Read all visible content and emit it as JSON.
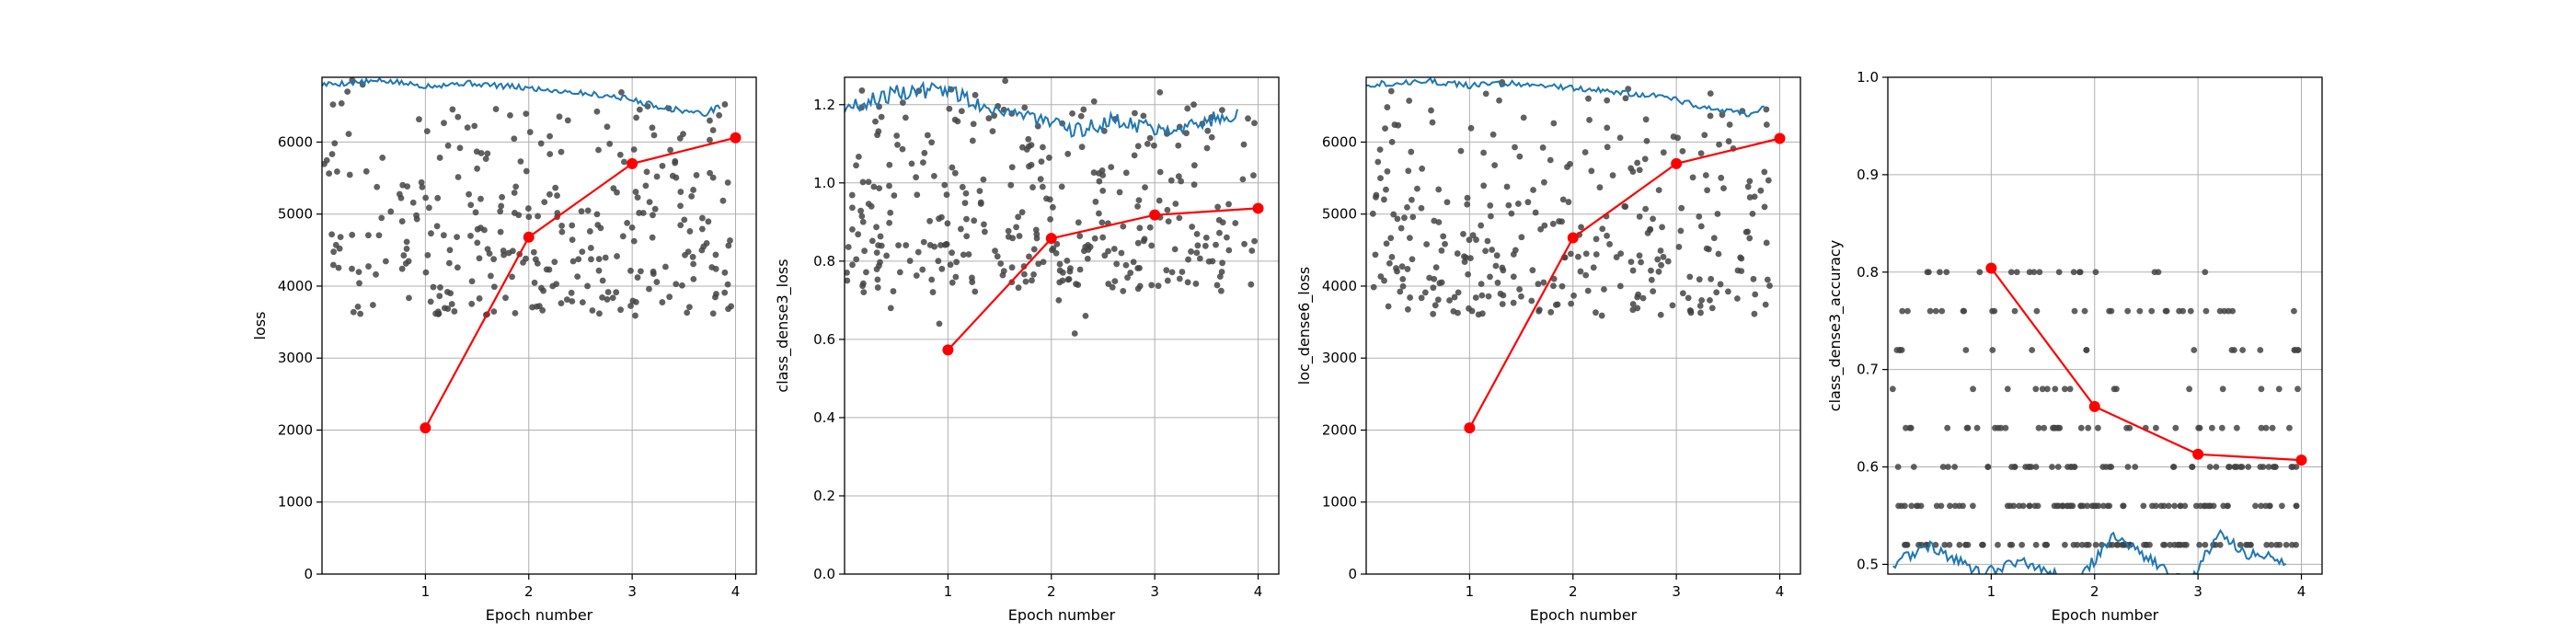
{
  "chart_data": [
    {
      "type": "line",
      "ylabel": "loss",
      "xlabel": "Epoch number",
      "xlim": [
        0,
        4.2
      ],
      "ylim": [
        0,
        6900
      ],
      "xticks": [
        1,
        2,
        3,
        4
      ],
      "yticks": [
        0,
        1000,
        2000,
        3000,
        4000,
        5000,
        6000
      ],
      "grid": true,
      "series": [
        {
          "kind": "epoch-mean",
          "color": "#ff0000",
          "x": [
            1,
            2,
            3,
            4
          ],
          "y": [
            2030,
            4680,
            5700,
            6060
          ]
        },
        {
          "kind": "batch-scatter",
          "color": "#444444",
          "count": 300,
          "seed": 11,
          "lo": 3600,
          "hi": 6900,
          "sparse_lo": [
            3590,
            3600,
            3750,
            3900,
            4000,
            4200
          ]
        },
        {
          "kind": "moving-average",
          "color": "#1f77b4",
          "profile": [
            [
              0.0,
              6800
            ],
            [
              0.6,
              6850
            ],
            [
              1.0,
              6780
            ],
            [
              1.4,
              6820
            ],
            [
              1.9,
              6760
            ],
            [
              2.4,
              6700
            ],
            [
              2.9,
              6620
            ],
            [
              3.3,
              6480
            ],
            [
              3.7,
              6390
            ],
            [
              3.85,
              6500
            ]
          ],
          "jitter": 40
        }
      ]
    },
    {
      "type": "line",
      "ylabel": "class_dense3_loss",
      "xlabel": "Epoch number",
      "xlim": [
        0,
        4.2
      ],
      "ylim": [
        0,
        1.27
      ],
      "xticks": [
        1,
        2,
        3,
        4
      ],
      "yticks": [
        0.0,
        0.2,
        0.4,
        0.6,
        0.8,
        1.0,
        1.2
      ],
      "grid": true,
      "series": [
        {
          "kind": "epoch-mean",
          "color": "#ff0000",
          "x": [
            1,
            2,
            3,
            4
          ],
          "y": [
            0.573,
            0.858,
            0.918,
            0.935
          ]
        },
        {
          "kind": "batch-scatter",
          "color": "#444444",
          "count": 330,
          "seed": 23,
          "lo": 0.72,
          "hi": 1.27,
          "sparse_lo": [
            0.615,
            0.64,
            0.66,
            0.68,
            0.7
          ]
        },
        {
          "kind": "moving-average",
          "color": "#1f77b4",
          "profile": [
            [
              0.0,
              1.19
            ],
            [
              0.5,
              1.23
            ],
            [
              1.0,
              1.24
            ],
            [
              1.3,
              1.2
            ],
            [
              1.8,
              1.17
            ],
            [
              2.2,
              1.13
            ],
            [
              2.6,
              1.16
            ],
            [
              3.0,
              1.14
            ],
            [
              3.4,
              1.15
            ],
            [
              3.8,
              1.18
            ]
          ],
          "jitter": 0.02
        }
      ]
    },
    {
      "type": "line",
      "ylabel": "loc_dense6_loss",
      "xlabel": "Epoch number",
      "xlim": [
        0,
        4.2
      ],
      "ylim": [
        0,
        6900
      ],
      "xticks": [
        1,
        2,
        3,
        4
      ],
      "yticks": [
        0,
        1000,
        2000,
        3000,
        4000,
        5000,
        6000
      ],
      "grid": true,
      "series": [
        {
          "kind": "epoch-mean",
          "color": "#ff0000",
          "x": [
            1,
            2,
            3,
            4
          ],
          "y": [
            2030,
            4670,
            5700,
            6050
          ]
        },
        {
          "kind": "batch-scatter",
          "color": "#444444",
          "count": 300,
          "seed": 37,
          "lo": 3600,
          "hi": 6900,
          "sparse_lo": [
            3590,
            3600,
            3750,
            3900,
            4000,
            4200
          ]
        },
        {
          "kind": "moving-average",
          "color": "#1f77b4",
          "profile": [
            [
              0.0,
              6800
            ],
            [
              0.6,
              6850
            ],
            [
              1.0,
              6780
            ],
            [
              1.4,
              6820
            ],
            [
              1.9,
              6760
            ],
            [
              2.4,
              6700
            ],
            [
              2.9,
              6620
            ],
            [
              3.3,
              6480
            ],
            [
              3.7,
              6390
            ],
            [
              3.85,
              6500
            ]
          ],
          "jitter": 40
        }
      ]
    },
    {
      "type": "line",
      "ylabel": "class_dense3_accuracy",
      "xlabel": "Epoch number",
      "xlim": [
        0,
        4.2
      ],
      "ylim": [
        0.49,
        1.0
      ],
      "xticks": [
        1,
        2,
        3,
        4
      ],
      "yticks": [
        0.5,
        0.6,
        0.7,
        0.8,
        0.9,
        1.0
      ],
      "grid": true,
      "series": [
        {
          "kind": "epoch-mean",
          "color": "#ff0000",
          "x": [
            1,
            2,
            3,
            4
          ],
          "y": [
            0.804,
            0.662,
            0.613,
            0.607
          ]
        },
        {
          "kind": "batch-scatter",
          "color": "#444444",
          "count": 320,
          "seed": 51,
          "levels": [
            0.52,
            0.52,
            0.52,
            0.56,
            0.56,
            0.56,
            0.6,
            0.6,
            0.64,
            0.64,
            0.68,
            0.72,
            0.76,
            0.8
          ],
          "sparse_lo": []
        },
        {
          "kind": "moving-average",
          "color": "#1f77b4",
          "profile": [
            [
              0.05,
              0.5
            ],
            [
              0.4,
              0.52
            ],
            [
              0.9,
              0.49
            ],
            [
              1.3,
              0.505
            ],
            [
              1.8,
              0.48
            ],
            [
              2.2,
              0.53
            ],
            [
              2.6,
              0.5
            ],
            [
              2.9,
              0.48
            ],
            [
              3.2,
              0.53
            ],
            [
              3.5,
              0.51
            ],
            [
              3.85,
              0.505
            ]
          ],
          "jitter": 0.006
        }
      ]
    }
  ]
}
